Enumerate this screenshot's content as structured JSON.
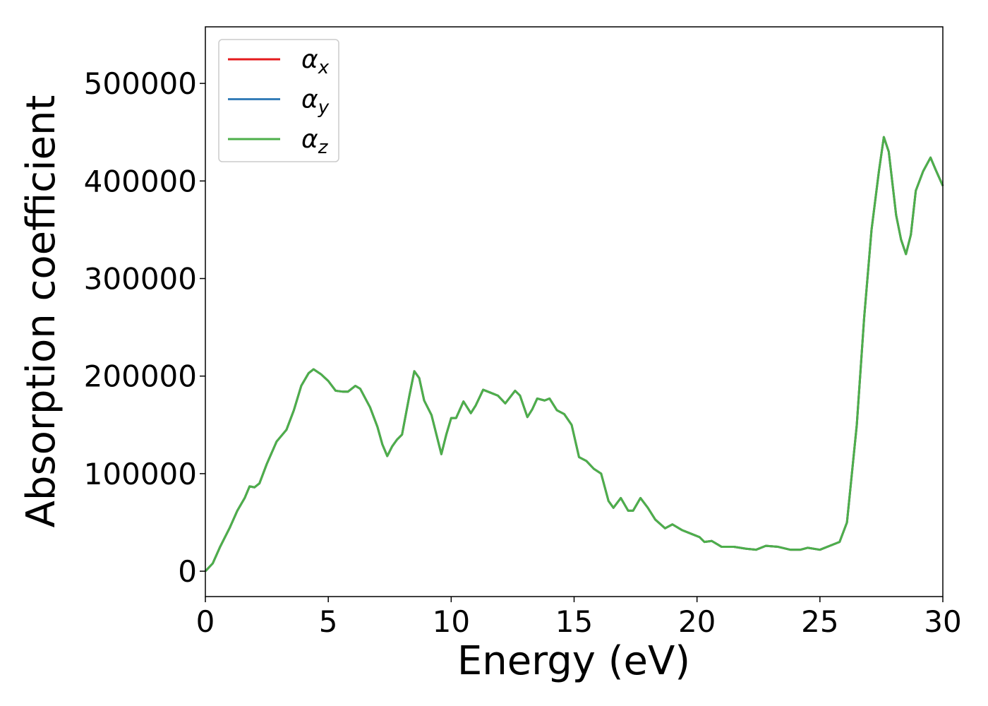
{
  "chart_data": {
    "type": "line",
    "xlabel": "Energy (eV)",
    "ylabel": "Absorption coefficient",
    "x": [
      0,
      0.3,
      0.6,
      1.0,
      1.3,
      1.6,
      1.8,
      2.0,
      2.2,
      2.5,
      2.9,
      3.3,
      3.6,
      3.9,
      4.2,
      4.4,
      4.7,
      5.0,
      5.3,
      5.6,
      5.8,
      6.1,
      6.3,
      6.7,
      7.0,
      7.2,
      7.4,
      7.6,
      7.8,
      8.0,
      8.3,
      8.5,
      8.7,
      8.9,
      9.2,
      9.4,
      9.6,
      9.8,
      10.0,
      10.2,
      10.5,
      10.8,
      11.0,
      11.3,
      11.6,
      11.9,
      12.2,
      12.6,
      12.8,
      13.1,
      13.3,
      13.5,
      13.8,
      14.0,
      14.3,
      14.6,
      14.9,
      15.2,
      15.5,
      15.8,
      16.1,
      16.4,
      16.6,
      16.9,
      17.2,
      17.4,
      17.7,
      18.0,
      18.3,
      18.7,
      19.0,
      19.4,
      19.8,
      20.1,
      20.3,
      20.6,
      21.0,
      21.5,
      22.0,
      22.4,
      22.8,
      23.3,
      23.8,
      24.2,
      24.5,
      25.0,
      25.4,
      25.8,
      26.1,
      26.5,
      26.8,
      27.1,
      27.4,
      27.6,
      27.8,
      28.1,
      28.3,
      28.5,
      28.7,
      28.9,
      29.2,
      29.5,
      29.7,
      30.0
    ],
    "series": [
      {
        "name": "αx",
        "color": "#e41a1c",
        "values": [
          0,
          8000,
          25000,
          45000,
          62000,
          75000,
          87000,
          86000,
          90000,
          110000,
          133000,
          145000,
          165000,
          190000,
          203000,
          207000,
          202000,
          195000,
          185000,
          184000,
          184000,
          190000,
          187000,
          168000,
          148000,
          130000,
          118000,
          128000,
          135000,
          140000,
          180000,
          205000,
          198000,
          175000,
          160000,
          140000,
          120000,
          140000,
          157000,
          157000,
          174000,
          162000,
          170000,
          186000,
          183000,
          180000,
          172000,
          185000,
          180000,
          158000,
          166000,
          177000,
          175000,
          177000,
          165000,
          161000,
          150000,
          117000,
          113000,
          105000,
          100000,
          72000,
          65000,
          75000,
          62000,
          62000,
          75000,
          65000,
          53000,
          44000,
          48000,
          42000,
          38000,
          35000,
          30000,
          31000,
          25000,
          25000,
          23000,
          22000,
          26000,
          25000,
          22000,
          22000,
          24000,
          22000,
          26000,
          30000,
          50000,
          150000,
          260000,
          350000,
          410000,
          445000,
          430000,
          365000,
          340000,
          325000,
          345000,
          390000,
          410000,
          424000,
          412000,
          395000
        ]
      },
      {
        "name": "αy",
        "color": "#377eb8",
        "values": [
          0,
          8000,
          25000,
          45000,
          62000,
          75000,
          87000,
          86000,
          90000,
          110000,
          133000,
          145000,
          165000,
          190000,
          203000,
          207000,
          202000,
          195000,
          185000,
          184000,
          184000,
          190000,
          187000,
          168000,
          148000,
          130000,
          118000,
          128000,
          135000,
          140000,
          180000,
          205000,
          198000,
          175000,
          160000,
          140000,
          120000,
          140000,
          157000,
          157000,
          174000,
          162000,
          170000,
          186000,
          183000,
          180000,
          172000,
          185000,
          180000,
          158000,
          166000,
          177000,
          175000,
          177000,
          165000,
          161000,
          150000,
          117000,
          113000,
          105000,
          100000,
          72000,
          65000,
          75000,
          62000,
          62000,
          75000,
          65000,
          53000,
          44000,
          48000,
          42000,
          38000,
          35000,
          30000,
          31000,
          25000,
          25000,
          23000,
          22000,
          26000,
          25000,
          22000,
          22000,
          24000,
          22000,
          26000,
          30000,
          50000,
          150000,
          260000,
          350000,
          410000,
          445000,
          430000,
          365000,
          340000,
          325000,
          345000,
          390000,
          410000,
          424000,
          412000,
          395000
        ]
      },
      {
        "name": "αz",
        "color": "#4daf4a",
        "values": [
          0,
          8000,
          25000,
          45000,
          62000,
          75000,
          87000,
          86000,
          90000,
          110000,
          133000,
          145000,
          165000,
          190000,
          203000,
          207000,
          202000,
          195000,
          185000,
          184000,
          184000,
          190000,
          187000,
          168000,
          148000,
          130000,
          118000,
          128000,
          135000,
          140000,
          180000,
          205000,
          198000,
          175000,
          160000,
          140000,
          120000,
          140000,
          157000,
          157000,
          174000,
          162000,
          170000,
          186000,
          183000,
          180000,
          172000,
          185000,
          180000,
          158000,
          166000,
          177000,
          175000,
          177000,
          165000,
          161000,
          150000,
          117000,
          113000,
          105000,
          100000,
          72000,
          65000,
          75000,
          62000,
          62000,
          75000,
          65000,
          53000,
          44000,
          48000,
          42000,
          38000,
          35000,
          30000,
          31000,
          25000,
          25000,
          23000,
          22000,
          26000,
          25000,
          22000,
          22000,
          24000,
          22000,
          26000,
          30000,
          50000,
          150000,
          260000,
          350000,
          410000,
          445000,
          430000,
          365000,
          340000,
          325000,
          345000,
          390000,
          410000,
          424000,
          412000,
          395000
        ]
      }
    ],
    "xlim": [
      0,
      30
    ],
    "xticks": [
      0,
      5,
      10,
      15,
      20,
      25,
      30
    ],
    "ylim": [
      -26000,
      558000
    ],
    "yticks": [
      0,
      100000,
      200000,
      300000,
      400000,
      500000
    ],
    "legend": "upper left",
    "grid": false
  }
}
